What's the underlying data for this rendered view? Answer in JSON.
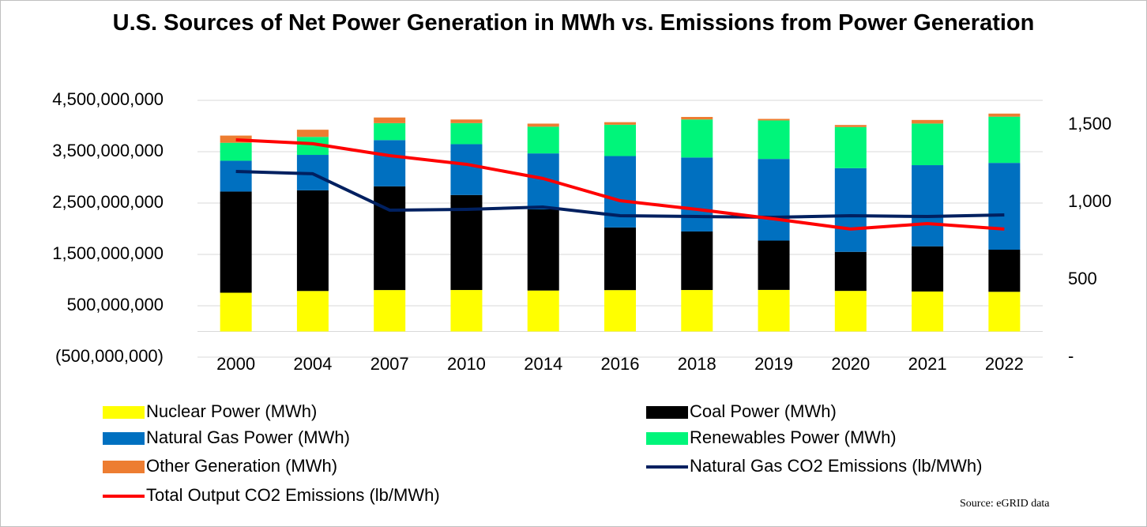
{
  "chart_data": {
    "type": "bar",
    "stacked": true,
    "title": "U.S. Sources of Net Power Generation in MWh vs. Emissions from Power Generation",
    "source": "Source: eGRID data",
    "categories": [
      "2000",
      "2004",
      "2007",
      "2010",
      "2014",
      "2016",
      "2018",
      "2019",
      "2020",
      "2021",
      "2022"
    ],
    "ylim": [
      -500000000,
      4500000000
    ],
    "yticks": [
      {
        "value": -500000000,
        "label": "(500,000,000)"
      },
      {
        "value": 500000000,
        "label": "500,000,000"
      },
      {
        "value": 1500000000,
        "label": "1,500,000,000"
      },
      {
        "value": 2500000000,
        "label": "2,500,000,000"
      },
      {
        "value": 3500000000,
        "label": "3,500,000,000"
      },
      {
        "value": 4500000000,
        "label": "4,500,000,000"
      }
    ],
    "y2lim": [
      0,
      1658
    ],
    "y2ticks": [
      {
        "value": 0,
        "label": "-"
      },
      500,
      {
        "value": 1000,
        "label": "1,000"
      },
      {
        "value": 1500,
        "label": "1,500"
      }
    ],
    "grid": true,
    "legend": "bottom",
    "series": [
      {
        "name": "Nuclear Power (MWh)",
        "color": "#ffff00",
        "values": [
          754000000,
          788000000,
          806000000,
          807000000,
          797000000,
          805000000,
          807000000,
          809000000,
          790000000,
          778000000,
          772000000
        ]
      },
      {
        "name": "Coal Power (MWh)",
        "color": "#000000",
        "values": [
          1970000000,
          1960000000,
          2020000000,
          1850000000,
          1580000000,
          1220000000,
          1140000000,
          960000000,
          760000000,
          880000000,
          820000000
        ]
      },
      {
        "name": "Natural Gas Power (MWh)",
        "color": "#0070c0",
        "values": [
          600000000,
          690000000,
          900000000,
          990000000,
          1090000000,
          1390000000,
          1440000000,
          1590000000,
          1630000000,
          1580000000,
          1690000000
        ]
      },
      {
        "name": "Renewables Power (MWh)",
        "color": "#00f57a",
        "values": [
          350000000,
          350000000,
          330000000,
          410000000,
          520000000,
          610000000,
          740000000,
          750000000,
          800000000,
          810000000,
          900000000
        ]
      },
      {
        "name": "Other Generation (MWh)",
        "color": "#ed7d31",
        "values": [
          140000000,
          140000000,
          110000000,
          70000000,
          60000000,
          50000000,
          50000000,
          30000000,
          40000000,
          70000000,
          60000000
        ]
      },
      {
        "name": "Natural Gas CO2 Emissions (lb/MWh)",
        "color": "#002060",
        "type": "line",
        "axis": "y2",
        "values": [
          1199,
          1184,
          949,
          954,
          969,
          913,
          908,
          903,
          913,
          908,
          918
        ]
      },
      {
        "name": "Total Output CO2 Emissions (lb/MWh)",
        "color": "#ff0000",
        "type": "line",
        "axis": "y2",
        "values": [
          1403,
          1378,
          1301,
          1245,
          1153,
          1010,
          954,
          893,
          827,
          862,
          827
        ]
      }
    ]
  }
}
